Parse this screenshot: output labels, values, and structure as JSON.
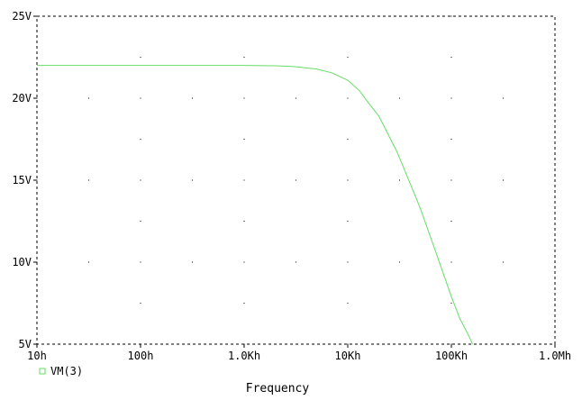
{
  "chart_data": {
    "type": "line",
    "title": "",
    "xlabel": "Frequency",
    "ylabel": "",
    "xscale": "log",
    "xlim": [
      10,
      1000000
    ],
    "ylim": [
      5,
      25
    ],
    "x_ticks": [
      10,
      100,
      1000,
      10000,
      100000,
      1000000
    ],
    "x_tick_labels": [
      "10h",
      "100h",
      "1.0Kh",
      "10Kh",
      "100Kh",
      "1.0Mh"
    ],
    "y_ticks": [
      5,
      10,
      15,
      20,
      25
    ],
    "y_tick_labels": [
      "5V",
      "10V",
      "15V",
      "20V",
      "25V"
    ],
    "grid": "dotted",
    "legend_placement": "bottom-left",
    "series": [
      {
        "name": "VM(3)",
        "color": "#66dd66",
        "x": [
          10,
          100,
          1000,
          2000,
          3000,
          5000,
          7000,
          10000,
          13000,
          15000,
          20000,
          30000,
          40000,
          50000,
          70000,
          100000,
          120000,
          150000,
          160000
        ],
        "y": [
          22.0,
          22.0,
          22.0,
          21.98,
          21.93,
          21.78,
          21.55,
          21.1,
          20.45,
          19.9,
          18.9,
          16.7,
          14.8,
          13.3,
          10.7,
          7.9,
          6.6,
          5.4,
          5.0
        ]
      }
    ]
  }
}
